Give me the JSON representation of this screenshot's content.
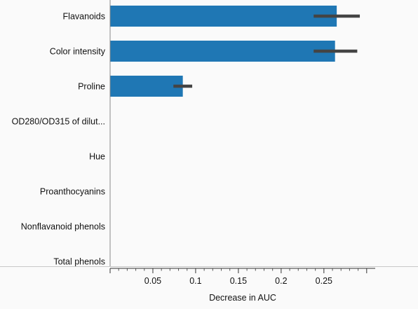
{
  "chart_data": {
    "type": "bar",
    "orientation": "horizontal",
    "categories": [
      "Flavanoids",
      "Color intensity",
      "Proline",
      "OD280/OD315 of dilut...",
      "Hue",
      "Proanthocyanins",
      "Nonflavanoid phenols",
      "Total phenols"
    ],
    "values": [
      0.265,
      0.263,
      0.085,
      0,
      0,
      0,
      0,
      0
    ],
    "error_low": [
      0.238,
      0.238,
      0.074,
      0,
      0,
      0,
      0,
      0
    ],
    "error_high": [
      0.292,
      0.289,
      0.096,
      0,
      0,
      0,
      0,
      0
    ],
    "xlabel": "Decrease in AUC",
    "xticks": [
      0.05,
      0.1,
      0.15,
      0.2,
      0.25
    ],
    "xticks_labels": [
      "0.05",
      "0.1",
      "0.15",
      "0.2",
      "0.25"
    ],
    "xlim": [
      0,
      0.31
    ],
    "bar_color": "#1f77b4",
    "error_color": "#444444",
    "grid": false,
    "legend": "none"
  }
}
